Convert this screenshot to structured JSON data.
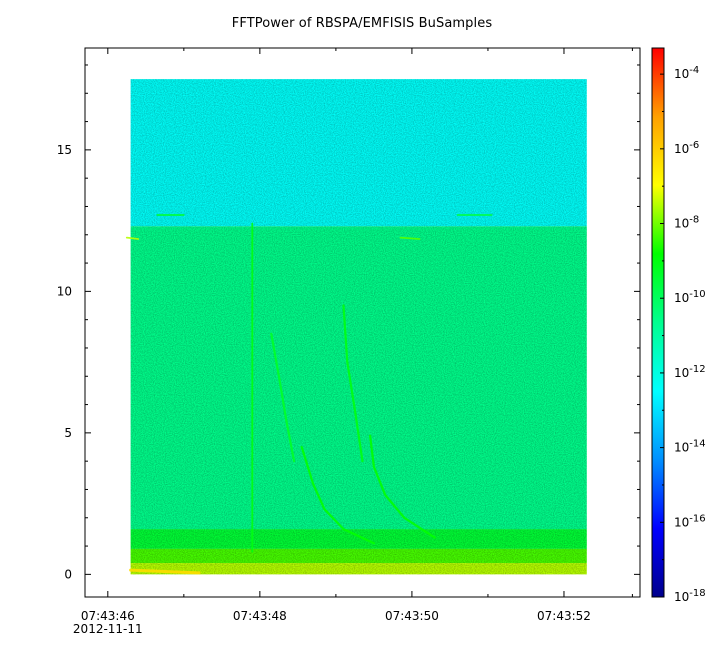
{
  "chart_data": {
    "type": "heatmap",
    "title": "FFTPower of RBSPA/EMFISIS  BuSamples",
    "xlabel": "",
    "ylabel": "",
    "x_range_seconds_after_07_43_46": [
      -0.3,
      7.0
    ],
    "data_time_span": [
      "07:43:46.3",
      "07:43:52.3"
    ],
    "y_range": [
      -0.8,
      18.6
    ],
    "y_ticks": [
      0,
      5,
      10,
      15
    ],
    "y_tick_labels": [
      "0",
      "5",
      "10",
      "15"
    ],
    "x_ticks_seconds": [
      0,
      2,
      4,
      6
    ],
    "x_tick_labels": [
      "07:43:46",
      "07:43:48",
      "07:43:50",
      "07:43:52"
    ],
    "x_date_label": "2012-11-11",
    "x_minor_ticks_seconds": [
      1,
      3,
      5,
      6.9
    ],
    "data_y_max": 17.5,
    "colorbar": {
      "scale": "log",
      "range_exponent": [
        -18,
        -3.3
      ],
      "ticks": [
        {
          "exp": -4,
          "base": "10",
          "sup": "-4"
        },
        {
          "exp": -6,
          "base": "10",
          "sup": "-6"
        },
        {
          "exp": -8,
          "base": "10",
          "sup": "-8"
        },
        {
          "exp": -10,
          "base": "10",
          "sup": "-10"
        },
        {
          "exp": -12,
          "base": "10",
          "sup": "-12"
        },
        {
          "exp": -14,
          "base": "10",
          "sup": "-14"
        },
        {
          "exp": -16,
          "base": "10",
          "sup": "-16"
        },
        {
          "exp": -18,
          "base": "10",
          "sup": "-18"
        }
      ],
      "colormap": [
        "#00008c",
        "#0000ff",
        "#0090ff",
        "#00ffff",
        "#00ff90",
        "#00ff00",
        "#ffff00",
        "#ffa000",
        "#ff0000"
      ]
    },
    "background_levels": [
      {
        "y_from": 12.3,
        "y_to": 17.5,
        "level_exp": -12.4
      },
      {
        "y_from": 1.6,
        "y_to": 12.3,
        "level_exp": -10.6
      },
      {
        "y_from": 0.9,
        "y_to": 1.6,
        "level_exp": -9.5
      },
      {
        "y_from": 0.4,
        "y_to": 0.9,
        "level_exp": -8.3
      },
      {
        "y_from": 0.0,
        "y_to": 0.4,
        "level_exp": -7.5
      }
    ],
    "features": [
      {
        "name": "vertical-spike",
        "points": [
          [
            1.6,
            12.4
          ],
          [
            1.6,
            0.8
          ]
        ],
        "level_exp": -9.0
      },
      {
        "name": "chorus-1",
        "points": [
          [
            2.25,
            4.5
          ],
          [
            2.4,
            3.2
          ],
          [
            2.55,
            2.3
          ],
          [
            2.8,
            1.6
          ],
          [
            3.2,
            1.1
          ]
        ],
        "level_exp": -8.8
      },
      {
        "name": "chorus-2",
        "points": [
          [
            3.15,
            4.9
          ],
          [
            3.2,
            3.8
          ],
          [
            3.35,
            2.8
          ],
          [
            3.6,
            2.0
          ],
          [
            4.0,
            1.3
          ]
        ],
        "level_exp": -8.8
      },
      {
        "name": "chorus-3",
        "points": [
          [
            1.85,
            8.5
          ],
          [
            1.95,
            7.0
          ],
          [
            2.05,
            5.4
          ],
          [
            2.15,
            4.0
          ]
        ],
        "level_exp": -9.3
      },
      {
        "name": "chorus-4",
        "points": [
          [
            2.8,
            9.5
          ],
          [
            2.85,
            7.5
          ],
          [
            2.95,
            5.8
          ],
          [
            3.05,
            4.0
          ]
        ],
        "level_exp": -9.0
      },
      {
        "name": "line-12",
        "points": [
          [
            -0.05,
            11.9
          ],
          [
            0.1,
            11.85
          ]
        ],
        "level_exp": -7.5
      },
      {
        "name": "line-12b",
        "points": [
          [
            3.55,
            11.9
          ],
          [
            3.8,
            11.85
          ]
        ],
        "level_exp": -8.2
      },
      {
        "name": "line-12-upper",
        "points": [
          [
            0.35,
            12.7
          ],
          [
            0.7,
            12.7
          ]
        ],
        "level_exp": -9.4
      },
      {
        "name": "line-12-upper-b",
        "points": [
          [
            4.3,
            12.7
          ],
          [
            4.75,
            12.7
          ]
        ],
        "level_exp": -9.6
      },
      {
        "name": "bottom-red",
        "points": [
          [
            0.0,
            0.15
          ],
          [
            0.9,
            0.05
          ]
        ],
        "level_exp": -6.3
      }
    ]
  }
}
